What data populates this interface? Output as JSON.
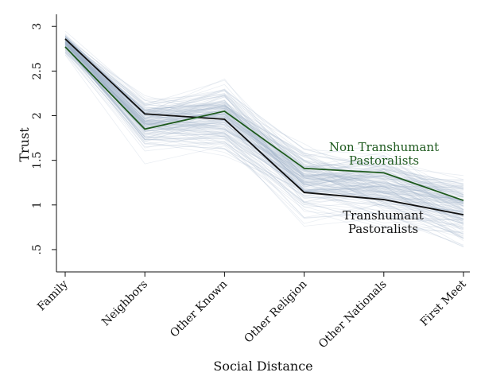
{
  "chart_data": {
    "type": "line",
    "title": "",
    "xlabel": "Social Distance",
    "ylabel": "Trust",
    "categories": [
      "Family",
      "Neighbors",
      "Other Known",
      "Other Religion",
      "Other Nationals",
      "First Meet"
    ],
    "ylim": [
      0.25,
      3.1
    ],
    "yticks": [
      0.5,
      1,
      1.5,
      2,
      2.5,
      3
    ],
    "ytick_labels": [
      ".5",
      "1",
      "1.5",
      "2",
      "2.5",
      "3"
    ],
    "grid": false,
    "legend": "none",
    "series": [
      {
        "name": "Transhumant Pastoralists",
        "values": [
          2.86,
          2.02,
          1.96,
          1.14,
          1.06,
          0.89
        ],
        "color": "#111111"
      },
      {
        "name": "Non Transhumant Pastoralists",
        "values": [
          2.77,
          1.85,
          2.05,
          1.41,
          1.36,
          1.05
        ],
        "color": "#1e5a1e"
      }
    ],
    "annotations": [
      {
        "lines": [
          "Non Transhumant",
          "Pastoralists"
        ],
        "series": "Non Transhumant Pastoralists",
        "color": "#1e5a1e"
      },
      {
        "lines": [
          "Transhumant",
          "Pastoralists"
        ],
        "series": "Transhumant Pastoralists",
        "color": "#111111"
      }
    ],
    "background_lines": {
      "description": "simulated replications",
      "color": "#9fb3c8",
      "count": 160
    }
  }
}
